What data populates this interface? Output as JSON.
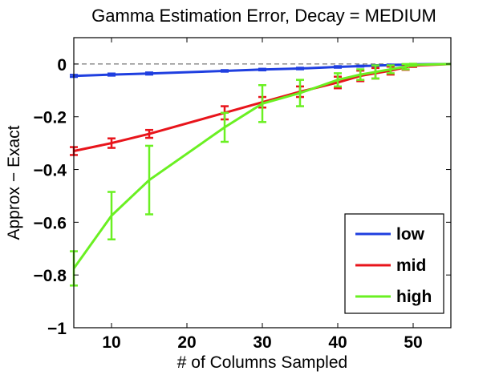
{
  "chart_data": {
    "type": "line",
    "title": "Gamma Estimation Error, Decay = MEDIUM",
    "xlabel": "# of Columns Sampled",
    "ylabel": "Approx − Exact",
    "xlim": [
      5,
      55
    ],
    "ylim": [
      -1,
      0.1
    ],
    "xticks": [
      10,
      20,
      30,
      40,
      50
    ],
    "xtick_labels": [
      "10",
      "20",
      "30",
      "40",
      "50"
    ],
    "yticks": [
      0,
      -0.2,
      -0.4,
      -0.6,
      -0.8,
      -1
    ],
    "ytick_labels": [
      "0",
      "−0.2",
      "−0.4",
      "−0.6",
      "−0.8",
      "−1"
    ],
    "reference_line": 0,
    "legend": [
      "low",
      "mid",
      "high"
    ],
    "legend_position": "bottom-right",
    "x": [
      5,
      10,
      15,
      25,
      30,
      35,
      40,
      43,
      45,
      47,
      49,
      50,
      55
    ],
    "series": [
      {
        "name": "low",
        "color": "#1f3fe0",
        "values": [
          -0.045,
          -0.04,
          -0.036,
          -0.026,
          -0.021,
          -0.017,
          -0.011,
          -0.008,
          -0.006,
          -0.004,
          -0.002,
          -0.001,
          0
        ],
        "err": [
          0.004,
          0.004,
          0.004,
          0.003,
          0.003,
          0.003,
          0.003,
          0.002,
          0.002,
          0.002,
          0.001,
          0.001,
          0
        ]
      },
      {
        "name": "mid",
        "color": "#e8141b",
        "values": [
          -0.33,
          -0.3,
          -0.265,
          -0.185,
          -0.145,
          -0.105,
          -0.07,
          -0.045,
          -0.035,
          -0.025,
          -0.012,
          -0.006,
          0
        ],
        "err": [
          0.015,
          0.018,
          0.015,
          0.025,
          0.02,
          0.02,
          0.022,
          0.02,
          0.02,
          0.015,
          0.01,
          0.005,
          0
        ]
      },
      {
        "name": "high",
        "color": "#6af022",
        "values": [
          -0.775,
          -0.575,
          -0.44,
          -0.24,
          -0.15,
          -0.11,
          -0.06,
          -0.04,
          -0.03,
          -0.02,
          -0.01,
          -0.003,
          0
        ],
        "err": [
          0.065,
          0.09,
          0.13,
          0.055,
          0.07,
          0.05,
          0.025,
          0.02,
          0.025,
          0.015,
          0.01,
          0.004,
          0
        ]
      }
    ]
  }
}
